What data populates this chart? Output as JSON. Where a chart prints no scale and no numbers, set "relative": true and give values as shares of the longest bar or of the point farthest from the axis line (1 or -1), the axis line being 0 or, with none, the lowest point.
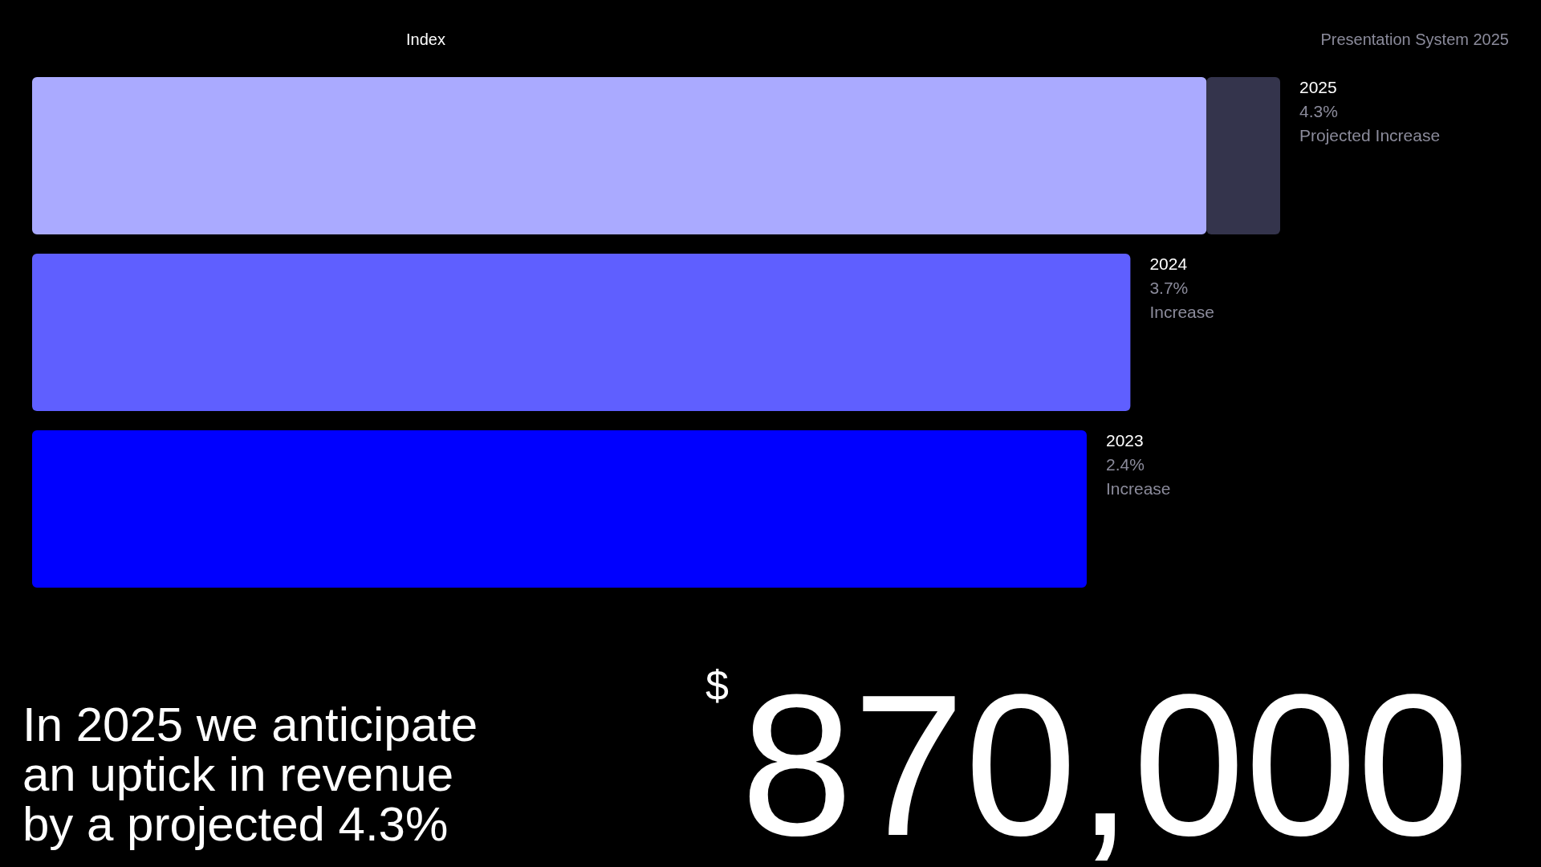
{
  "chart_data": {
    "type": "bar",
    "orientation": "horizontal",
    "stacked": true,
    "relative": true,
    "title": "In 2025 we anticipate an uptick in revenue by a projected 4.3%",
    "categories": [
      "2025",
      "2024",
      "2023"
    ],
    "series": [
      {
        "colors": [
          "#aaaaff",
          "#5f5fff",
          "#0000ff"
        ],
        "values": [
          0.941,
          0.88,
          0.845
        ]
      },
      {
        "color": "#34344c",
        "values": [
          0.059,
          null,
          null
        ]
      }
    ],
    "annotations": [
      "Index",
      "Presentation System 2025",
      "$870,000",
      {
        "text": "4.3%",
        "x": 1,
        "y": "2025"
      },
      {
        "text": "Projected Increase",
        "x": 1,
        "y": "2025"
      },
      {
        "text": "3.7%",
        "x": 0.88,
        "y": "2024"
      },
      {
        "text": "Increase",
        "x": 0.88,
        "y": "2024"
      },
      {
        "text": "2.4%",
        "x": 0.845,
        "y": "2023"
      },
      {
        "text": "Increase",
        "x": 0.845,
        "y": "2023"
      }
    ]
  }
}
